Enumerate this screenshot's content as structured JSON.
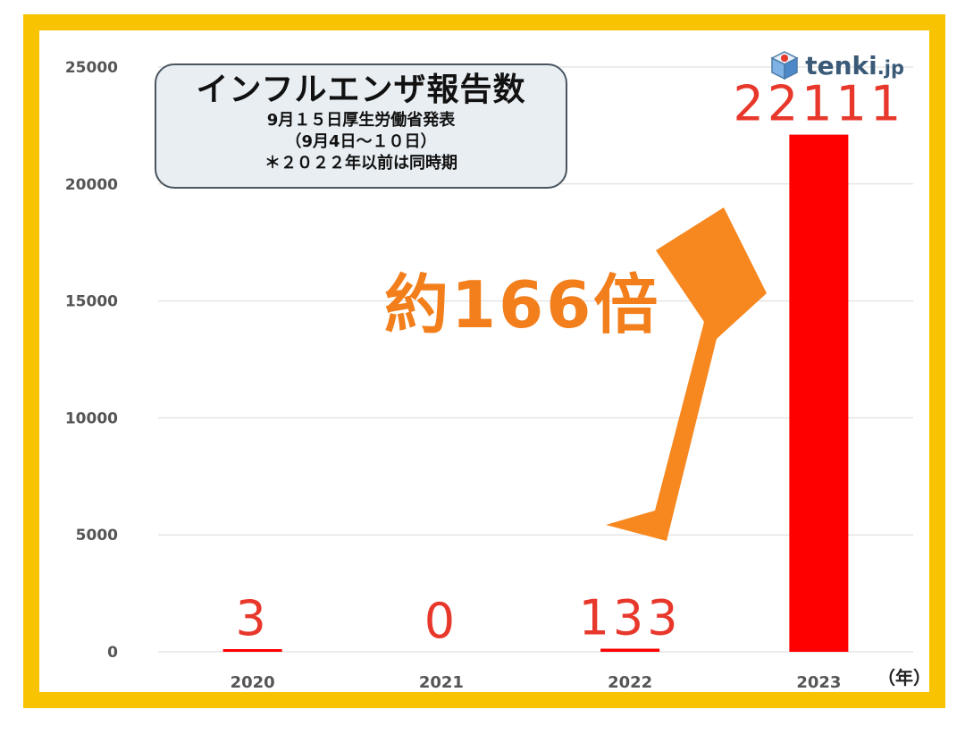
{
  "title_box": {
    "title": "インフルエンザ報告数",
    "line1": "9月１５日厚生労働省発表",
    "line2": "（9月4日～１０日）",
    "line3": "＊２０２２年以前は同時期"
  },
  "logo": {
    "brand": "tenki",
    "tld": ".jp",
    "icon": "tenki-cube-icon"
  },
  "annotation": "約166倍",
  "colors": {
    "frame": "#f8c300",
    "bar": "#ff0000",
    "value_label": "#e8372b",
    "arrow": "#f7871f",
    "annotation": "#f27f1b",
    "grid": "#d9d9d9",
    "axis_text": "#555555"
  },
  "chart_data": {
    "type": "bar",
    "categories": [
      "2020",
      "2021",
      "2022",
      "2023"
    ],
    "values": [
      3,
      0,
      133,
      22111
    ],
    "value_labels": [
      "3",
      "0",
      "133",
      "22111"
    ],
    "ylim": [
      0,
      25000
    ],
    "yticks": [
      0,
      5000,
      10000,
      15000,
      20000,
      25000
    ],
    "x_unit_label": "（年）",
    "grid": true,
    "legend": "none"
  }
}
